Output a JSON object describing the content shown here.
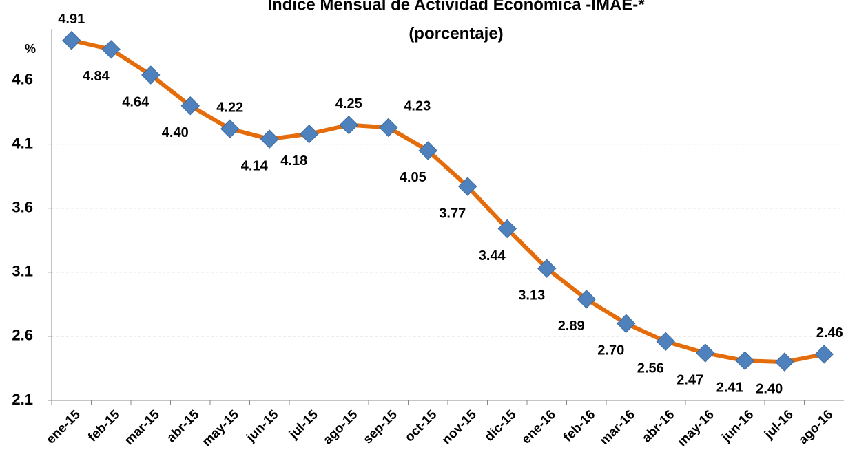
{
  "chart_data": {
    "type": "line",
    "title": "Índice Mensual de Actividad Económica -IMAE-*",
    "subtitle": "(porcentaje)",
    "y_label": "%",
    "categories": [
      "ene-15",
      "feb-15",
      "mar-15",
      "abr-15",
      "may-15",
      "jun-15",
      "jul-15",
      "ago-15",
      "sep-15",
      "oct-15",
      "nov-15",
      "dic-15",
      "ene-16",
      "feb-16",
      "mar-16",
      "abr-16",
      "may-16",
      "jun-16",
      "jul-16",
      "ago-16"
    ],
    "series": [
      {
        "name": "IMAE",
        "color": "#e46c0a",
        "marker_color": "#4f81bd",
        "values": [
          4.91,
          4.84,
          4.64,
          4.4,
          4.22,
          4.14,
          4.18,
          4.25,
          4.23,
          4.05,
          3.77,
          3.44,
          3.13,
          2.89,
          2.7,
          2.56,
          2.47,
          2.41,
          2.4,
          2.46
        ],
        "value_labels": [
          "4.91",
          "4.84",
          "4.64",
          "4.40",
          "4.22",
          "4.14",
          "4.18",
          "4.25",
          "4.23",
          "4.05",
          "3.77",
          "3.44",
          "3.13",
          "2.89",
          "2.70",
          "2.56",
          "2.47",
          "2.41",
          "2.40",
          "2.46"
        ]
      }
    ],
    "ylim": [
      2.1,
      5.0
    ],
    "yticks": [
      2.1,
      2.6,
      3.1,
      3.6,
      4.1,
      4.6
    ],
    "grid": true
  }
}
